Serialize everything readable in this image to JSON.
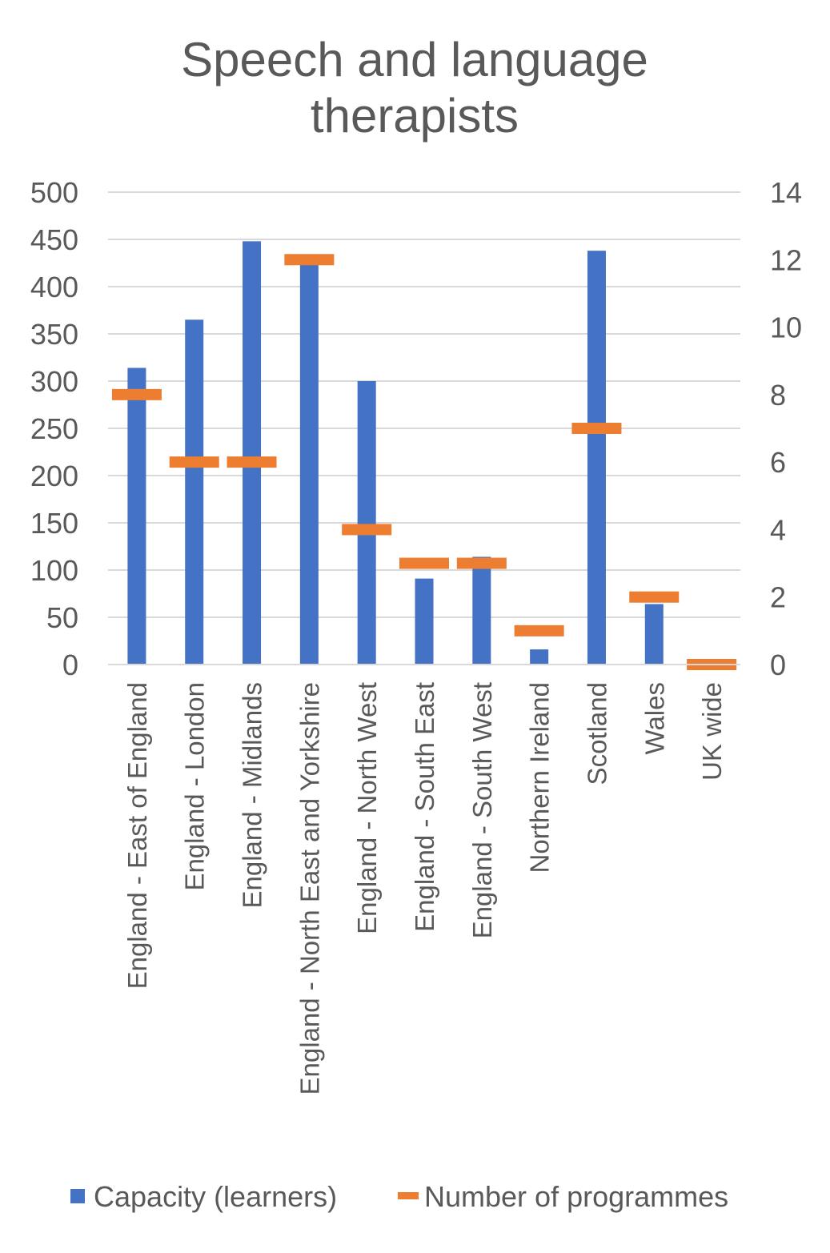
{
  "chart_data": {
    "type": "bar",
    "title_lines": [
      "Speech and language",
      "therapists"
    ],
    "categories": [
      "England - East of England",
      "England - London",
      "England - Midlands",
      "England - North East and Yorkshire",
      "England - North West",
      "England - South East",
      "England - South West",
      "Northern Ireland",
      "Scotland",
      "Wales",
      "UK wide"
    ],
    "series": [
      {
        "name": "Capacity (learners)",
        "kind": "bar",
        "axis": "left",
        "color": "#4472C4",
        "values": [
          314,
          365,
          448,
          425,
          300,
          91,
          114,
          16,
          438,
          64,
          0
        ]
      },
      {
        "name": "Number of programmes",
        "kind": "marker",
        "axis": "right",
        "color": "#ED7D31",
        "values": [
          8,
          6,
          6,
          12,
          4,
          3,
          3,
          1,
          7,
          2,
          0
        ]
      }
    ],
    "y_left": {
      "min": 0,
      "max": 500,
      "step": 50,
      "ticks": [
        "0",
        "50",
        "100",
        "150",
        "200",
        "250",
        "300",
        "350",
        "400",
        "450",
        "500"
      ]
    },
    "y_right": {
      "min": 0,
      "max": 14,
      "step": 2,
      "ticks": [
        "0",
        "2",
        "4",
        "6",
        "8",
        "10",
        "12",
        "14"
      ]
    },
    "grid": true,
    "legend_position": "bottom",
    "colors": {
      "text": "#595959",
      "grid": "#D9D9D9",
      "axis": "#D9D9D9"
    }
  }
}
